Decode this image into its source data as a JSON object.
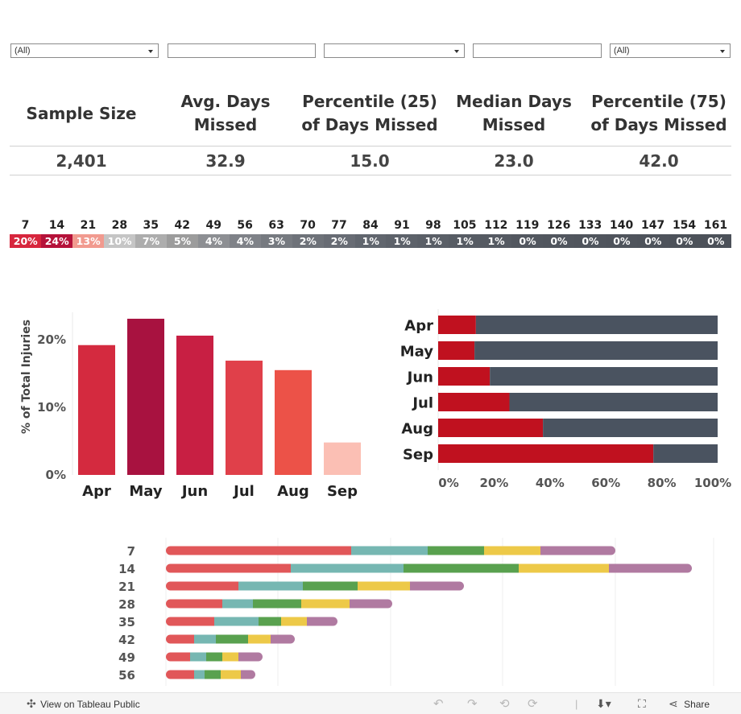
{
  "filters": [
    {
      "value": "(All)",
      "has_dropdown": true
    },
    {
      "value": "",
      "has_dropdown": false
    },
    {
      "value": "",
      "has_dropdown": true
    },
    {
      "value": "",
      "has_dropdown": false
    },
    {
      "value": "(All)",
      "has_dropdown": true
    }
  ],
  "kpis": [
    {
      "label_line1": "Sample Size",
      "label_line2": "",
      "value": "2,401"
    },
    {
      "label_line1": "Avg. Days",
      "label_line2": "Missed",
      "value": "32.9"
    },
    {
      "label_line1": "Percentile (25)",
      "label_line2": "of Days Missed",
      "value": "15.0"
    },
    {
      "label_line1": "Median Days",
      "label_line2": "Missed",
      "value": "23.0"
    },
    {
      "label_line1": "Percentile (75)",
      "label_line2": "of Days Missed",
      "value": "42.0"
    }
  ],
  "day_strip": {
    "days": [
      "7",
      "14",
      "21",
      "28",
      "35",
      "42",
      "49",
      "56",
      "63",
      "70",
      "77",
      "84",
      "91",
      "98",
      "105",
      "112",
      "119",
      "126",
      "133",
      "140",
      "147",
      "154",
      "161"
    ],
    "pcts": [
      "20%",
      "24%",
      "13%",
      "10%",
      "7%",
      "5%",
      "4%",
      "4%",
      "3%",
      "2%",
      "2%",
      "1%",
      "1%",
      "1%",
      "1%",
      "1%",
      "0%",
      "0%",
      "0%",
      "0%",
      "0%",
      "0%",
      "0%"
    ],
    "colors": [
      "#d7263d",
      "#b5123a",
      "#f19a8f",
      "#c5c5c5",
      "#adadad",
      "#9c9c9c",
      "#8d8f93",
      "#7f8288",
      "#767a80",
      "#6e7279",
      "#686c74",
      "#61666e",
      "#5d626a",
      "#5a5f67",
      "#575c64",
      "#555a62",
      "#52575f",
      "#51565e",
      "#50555d",
      "#4f545c",
      "#4e535b",
      "#4d525a",
      "#4c5159"
    ]
  },
  "chart_data": [
    {
      "type": "bar",
      "title": "",
      "xlabel": "",
      "ylabel": "% of Total Injuries",
      "categories": [
        "Apr",
        "May",
        "Jun",
        "Jul",
        "Aug",
        "Sep"
      ],
      "values": [
        19.2,
        23.1,
        20.6,
        16.9,
        15.5,
        4.8
      ],
      "colors": [
        "#d42a3f",
        "#a81240",
        "#c81f43",
        "#e0404a",
        "#ec5248",
        "#fbbfb4"
      ],
      "ylim": [
        0,
        25
      ],
      "yticks": [
        0,
        10,
        20
      ],
      "ytick_labels": [
        "0%",
        "10%",
        "20%"
      ],
      "grid": false
    },
    {
      "type": "bar",
      "orientation": "horizontal",
      "stacked": true,
      "title": "",
      "xlabel": "",
      "ylabel": "",
      "categories": [
        "Apr",
        "May",
        "Jun",
        "Jul",
        "Aug",
        "Sep"
      ],
      "series": [
        {
          "values": [
            13.5,
            13.0,
            18.5,
            25.5,
            37.5,
            77.0
          ],
          "color": "#c0111f"
        },
        {
          "values": [
            86.5,
            87.0,
            81.5,
            74.5,
            62.5,
            23.0
          ],
          "color": "#4a5360"
        }
      ],
      "xlim": [
        0,
        100
      ],
      "xticks": [
        0,
        20,
        40,
        60,
        80,
        100
      ],
      "xtick_labels": [
        "0%",
        "20%",
        "40%",
        "60%",
        "80%",
        "100%"
      ],
      "grid": false
    },
    {
      "type": "bar",
      "orientation": "horizontal",
      "stacked": true,
      "title": "",
      "xlabel": "",
      "ylabel": "",
      "categories": [
        "7",
        "14",
        "21",
        "28",
        "35",
        "42",
        "49",
        "56"
      ],
      "series": [
        {
          "values": [
            230,
            155,
            90,
            70,
            60,
            35,
            30,
            35
          ],
          "color": "#e15759"
        },
        {
          "values": [
            95,
            140,
            80,
            38,
            55,
            27,
            20,
            13
          ],
          "color": "#76b7b2"
        },
        {
          "values": [
            70,
            143,
            68,
            60,
            28,
            40,
            20,
            20
          ],
          "color": "#59a14f"
        },
        {
          "values": [
            70,
            112,
            65,
            60,
            32,
            28,
            20,
            25
          ],
          "color": "#edc948"
        },
        {
          "values": [
            93,
            103,
            67,
            53,
            38,
            30,
            30,
            18
          ],
          "color": "#b07aa1"
        }
      ],
      "grid": true
    }
  ],
  "toolbar": {
    "view_label": "View on Tableau Public",
    "share_label": "Share",
    "icons": [
      "tableau-logo-icon",
      "undo-icon",
      "redo-icon",
      "revert-icon",
      "refresh-icon",
      "download-icon",
      "fullscreen-icon",
      "share-icon"
    ]
  }
}
